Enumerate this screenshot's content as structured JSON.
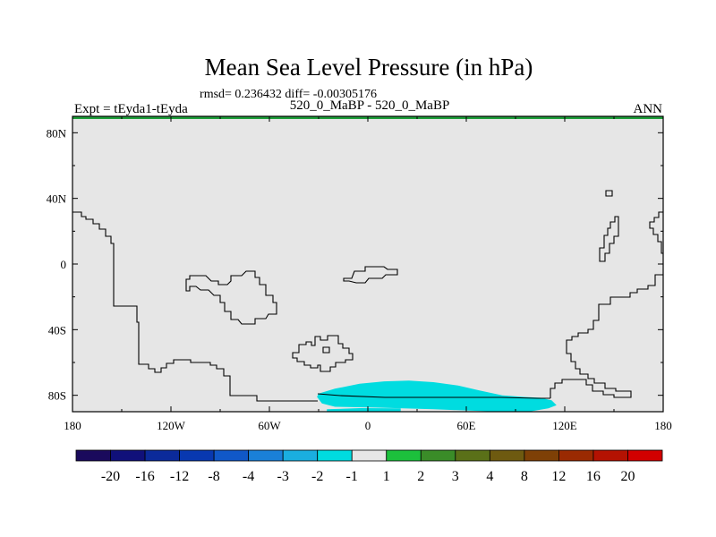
{
  "title": "Mean Sea Level Pressure (in hPa)",
  "stats_line": "rmsd= 0.236432 diff= -0.00305176",
  "left_label": "Expt = tEyda1-tEyda",
  "center_label": "520_0_MaBP - 520_0_MaBP",
  "right_label": "ANN",
  "map": {
    "projection": "cylindrical-equidistant",
    "lon_range": [
      -180,
      180
    ],
    "lat_range": [
      -90,
      90
    ],
    "x_ticks": [
      {
        "lon": -180,
        "label": "180"
      },
      {
        "lon": -120,
        "label": "120W"
      },
      {
        "lon": -60,
        "label": "60W"
      },
      {
        "lon": 0,
        "label": "0"
      },
      {
        "lon": 60,
        "label": "60E"
      },
      {
        "lon": 120,
        "label": "120E"
      },
      {
        "lon": 180,
        "label": "180"
      }
    ],
    "y_ticks": [
      {
        "lat": 80,
        "label": "80N"
      },
      {
        "lat": 40,
        "label": "40N"
      },
      {
        "lat": 0,
        "label": "0"
      },
      {
        "lat": -40,
        "label": "40S"
      },
      {
        "lat": -80,
        "label": "80S"
      }
    ],
    "background_color": "#e6e6e6",
    "anomaly_regions": [
      {
        "name": "southern-ocean-negative-anomaly",
        "bin": "-2 to -1",
        "color": "#00dce0",
        "polygon_lonlat": [
          [
            -30,
            -79
          ],
          [
            -20,
            -76
          ],
          [
            -5,
            -73
          ],
          [
            10,
            -71.5
          ],
          [
            25,
            -71
          ],
          [
            40,
            -72
          ],
          [
            55,
            -74
          ],
          [
            68,
            -77
          ],
          [
            82,
            -80
          ],
          [
            95,
            -81
          ],
          [
            105,
            -81.5
          ],
          [
            112,
            -83
          ],
          [
            115,
            -86
          ],
          [
            110,
            -88
          ],
          [
            98,
            -90
          ],
          [
            80,
            -90
          ],
          [
            40,
            -88.5
          ],
          [
            5,
            -87.5
          ],
          [
            -20,
            -87
          ],
          [
            -28,
            -85
          ],
          [
            -31,
            -81
          ]
        ]
      },
      {
        "name": "polar-sliver-anomaly",
        "bin": "-2 to -1",
        "color": "#00dce0",
        "polygon_lonlat": [
          [
            -25,
            -88.5
          ],
          [
            -5,
            -87.8
          ],
          [
            20,
            -88
          ],
          [
            20,
            -90
          ],
          [
            -25,
            -90
          ]
        ]
      }
    ],
    "north_edge_strip_color": "#1e9e3a"
  },
  "colorbar": {
    "colors": [
      "#1a0a5c",
      "#10107a",
      "#0b2a9a",
      "#0838b0",
      "#1058c8",
      "#1a80d8",
      "#1aaee0",
      "#00dce0",
      "#e6e6e6",
      "#1cc03c",
      "#3a8c28",
      "#5a7018",
      "#6e5a10",
      "#7e4006",
      "#9a2a02",
      "#b41202",
      "#d20000"
    ],
    "labels": [
      "-20",
      "-16",
      "-12",
      "-8",
      "-4",
      "-3",
      "-2",
      "-1",
      "1",
      "2",
      "3",
      "4",
      "8",
      "12",
      "16",
      "20"
    ]
  }
}
